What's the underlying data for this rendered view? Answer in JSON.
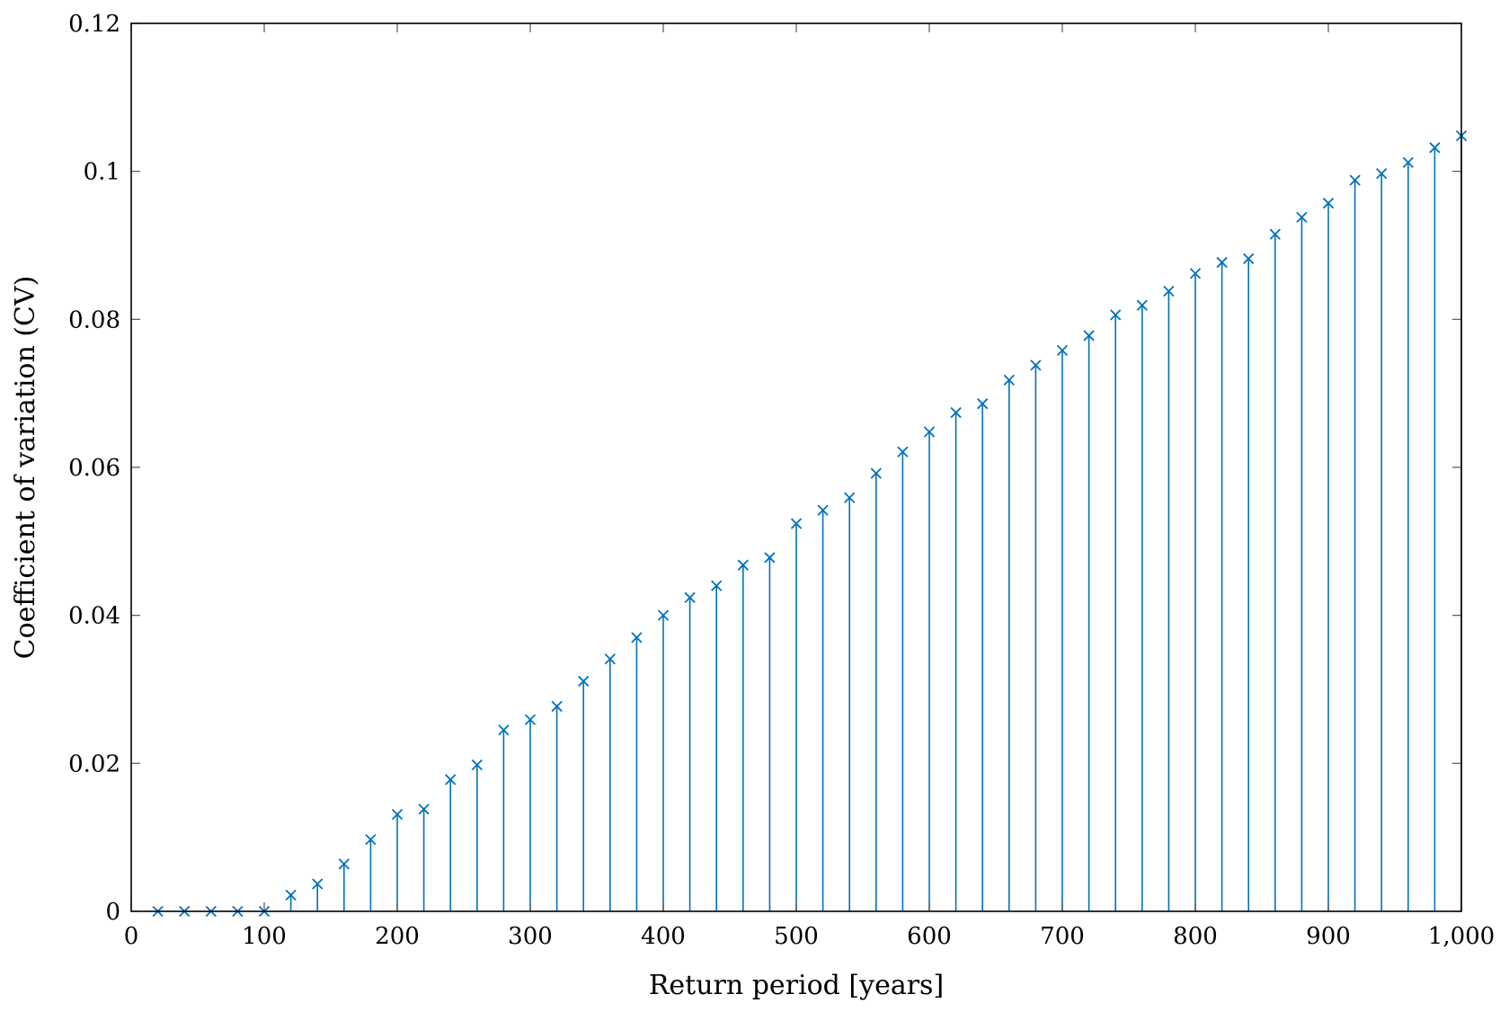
{
  "chart_data": {
    "type": "stem",
    "xlabel": "Return period [years]",
    "ylabel": "Coefficient of variation (CV)",
    "xlim": [
      0,
      1000
    ],
    "ylim": [
      0,
      0.12
    ],
    "x_ticks": [
      0,
      100,
      200,
      300,
      400,
      500,
      600,
      700,
      800,
      900,
      1000
    ],
    "x_tick_labels": [
      "0",
      "100",
      "200",
      "300",
      "400",
      "500",
      "600",
      "700",
      "800",
      "900",
      "1,000"
    ],
    "y_ticks": [
      0,
      0.02,
      0.04,
      0.06,
      0.08,
      0.1,
      0.12
    ],
    "y_tick_labels": [
      "0",
      "0.02",
      "0.04",
      "0.06",
      "0.08",
      "0.1",
      "0.12"
    ],
    "grid": false,
    "marker": "x",
    "color": "#0072BD",
    "x": [
      20,
      40,
      60,
      80,
      100,
      120,
      140,
      160,
      180,
      200,
      220,
      240,
      260,
      280,
      300,
      320,
      340,
      360,
      380,
      400,
      420,
      440,
      460,
      480,
      500,
      520,
      540,
      560,
      580,
      600,
      620,
      640,
      660,
      680,
      700,
      720,
      740,
      760,
      780,
      800,
      820,
      840,
      860,
      880,
      900,
      920,
      940,
      960,
      980,
      1000
    ],
    "y": [
      0,
      0,
      0,
      0,
      0,
      0.0022,
      0.0037,
      0.0064,
      0.0097,
      0.0131,
      0.0138,
      0.0178,
      0.0198,
      0.0245,
      0.0259,
      0.0277,
      0.0311,
      0.0341,
      0.037,
      0.04,
      0.0424,
      0.044,
      0.0468,
      0.0478,
      0.0524,
      0.0542,
      0.0559,
      0.0592,
      0.0621,
      0.0648,
      0.0674,
      0.0686,
      0.0718,
      0.0738,
      0.0758,
      0.0778,
      0.0806,
      0.0819,
      0.0838,
      0.0862,
      0.0877,
      0.0882,
      0.0915,
      0.0938,
      0.0957,
      0.0988,
      0.0997,
      0.1012,
      0.1032,
      0.1048
    ]
  }
}
